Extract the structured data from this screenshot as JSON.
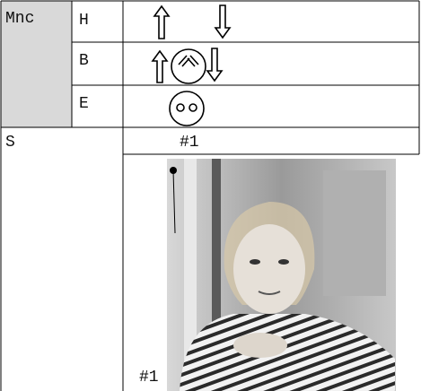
{
  "table": {
    "group": "Mnc",
    "rows": [
      {
        "label": "H"
      },
      {
        "label": "B"
      },
      {
        "label": "E"
      }
    ],
    "section": "S",
    "clip_header": "#1",
    "image_caption": "#1"
  }
}
